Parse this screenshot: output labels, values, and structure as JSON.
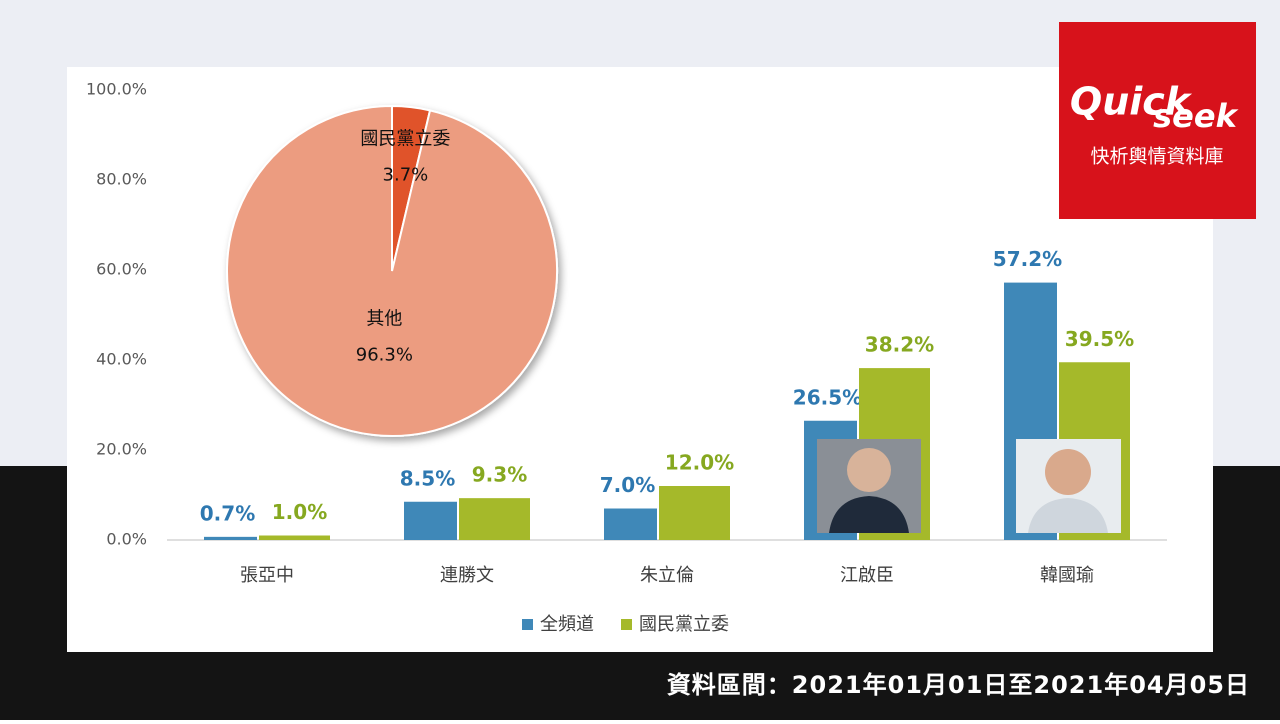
{
  "chart_data": [
    {
      "type": "bar",
      "categories": [
        "張亞中",
        "連勝文",
        "朱立倫",
        "江啟臣",
        "韓國瑜"
      ],
      "series": [
        {
          "name": "全頻道",
          "color": "#3f88b8",
          "label_color": "#2e78b0",
          "values": [
            0.7,
            8.5,
            7.0,
            26.5,
            57.2
          ],
          "value_labels": [
            "0.7%",
            "8.5%",
            "7.0%",
            "26.5%",
            "57.2%"
          ]
        },
        {
          "name": "國民黨立委",
          "color": "#a5b92a",
          "label_color": "#86a820",
          "values": [
            1.0,
            9.3,
            12.0,
            38.2,
            39.5
          ],
          "value_labels": [
            "1.0%",
            "9.3%",
            "12.0%",
            "38.2%",
            "39.5%"
          ]
        }
      ],
      "ylim": [
        0,
        100
      ],
      "yticks": [
        {
          "value": 0,
          "label": "0.0%"
        },
        {
          "value": 20,
          "label": "20.0%"
        },
        {
          "value": 40,
          "label": "40.0%"
        },
        {
          "value": 60,
          "label": "60.0%"
        },
        {
          "value": 80,
          "label": "80.0%"
        },
        {
          "value": 100,
          "label": "100.0%"
        }
      ],
      "legend": "bottom"
    },
    {
      "type": "pie",
      "categories": [
        "國民黨立委",
        "其他"
      ],
      "values": [
        3.7,
        96.3
      ],
      "value_labels": [
        "3.7%",
        "96.3%"
      ],
      "colors": [
        "#e0532b",
        "#ec9c80"
      ]
    }
  ],
  "logo": {
    "line1": "Quick",
    "line2": "seek",
    "subtitle": "快析輿情資料庫"
  },
  "footer": "資料區間：2021年01月01日至2021年04月05日"
}
